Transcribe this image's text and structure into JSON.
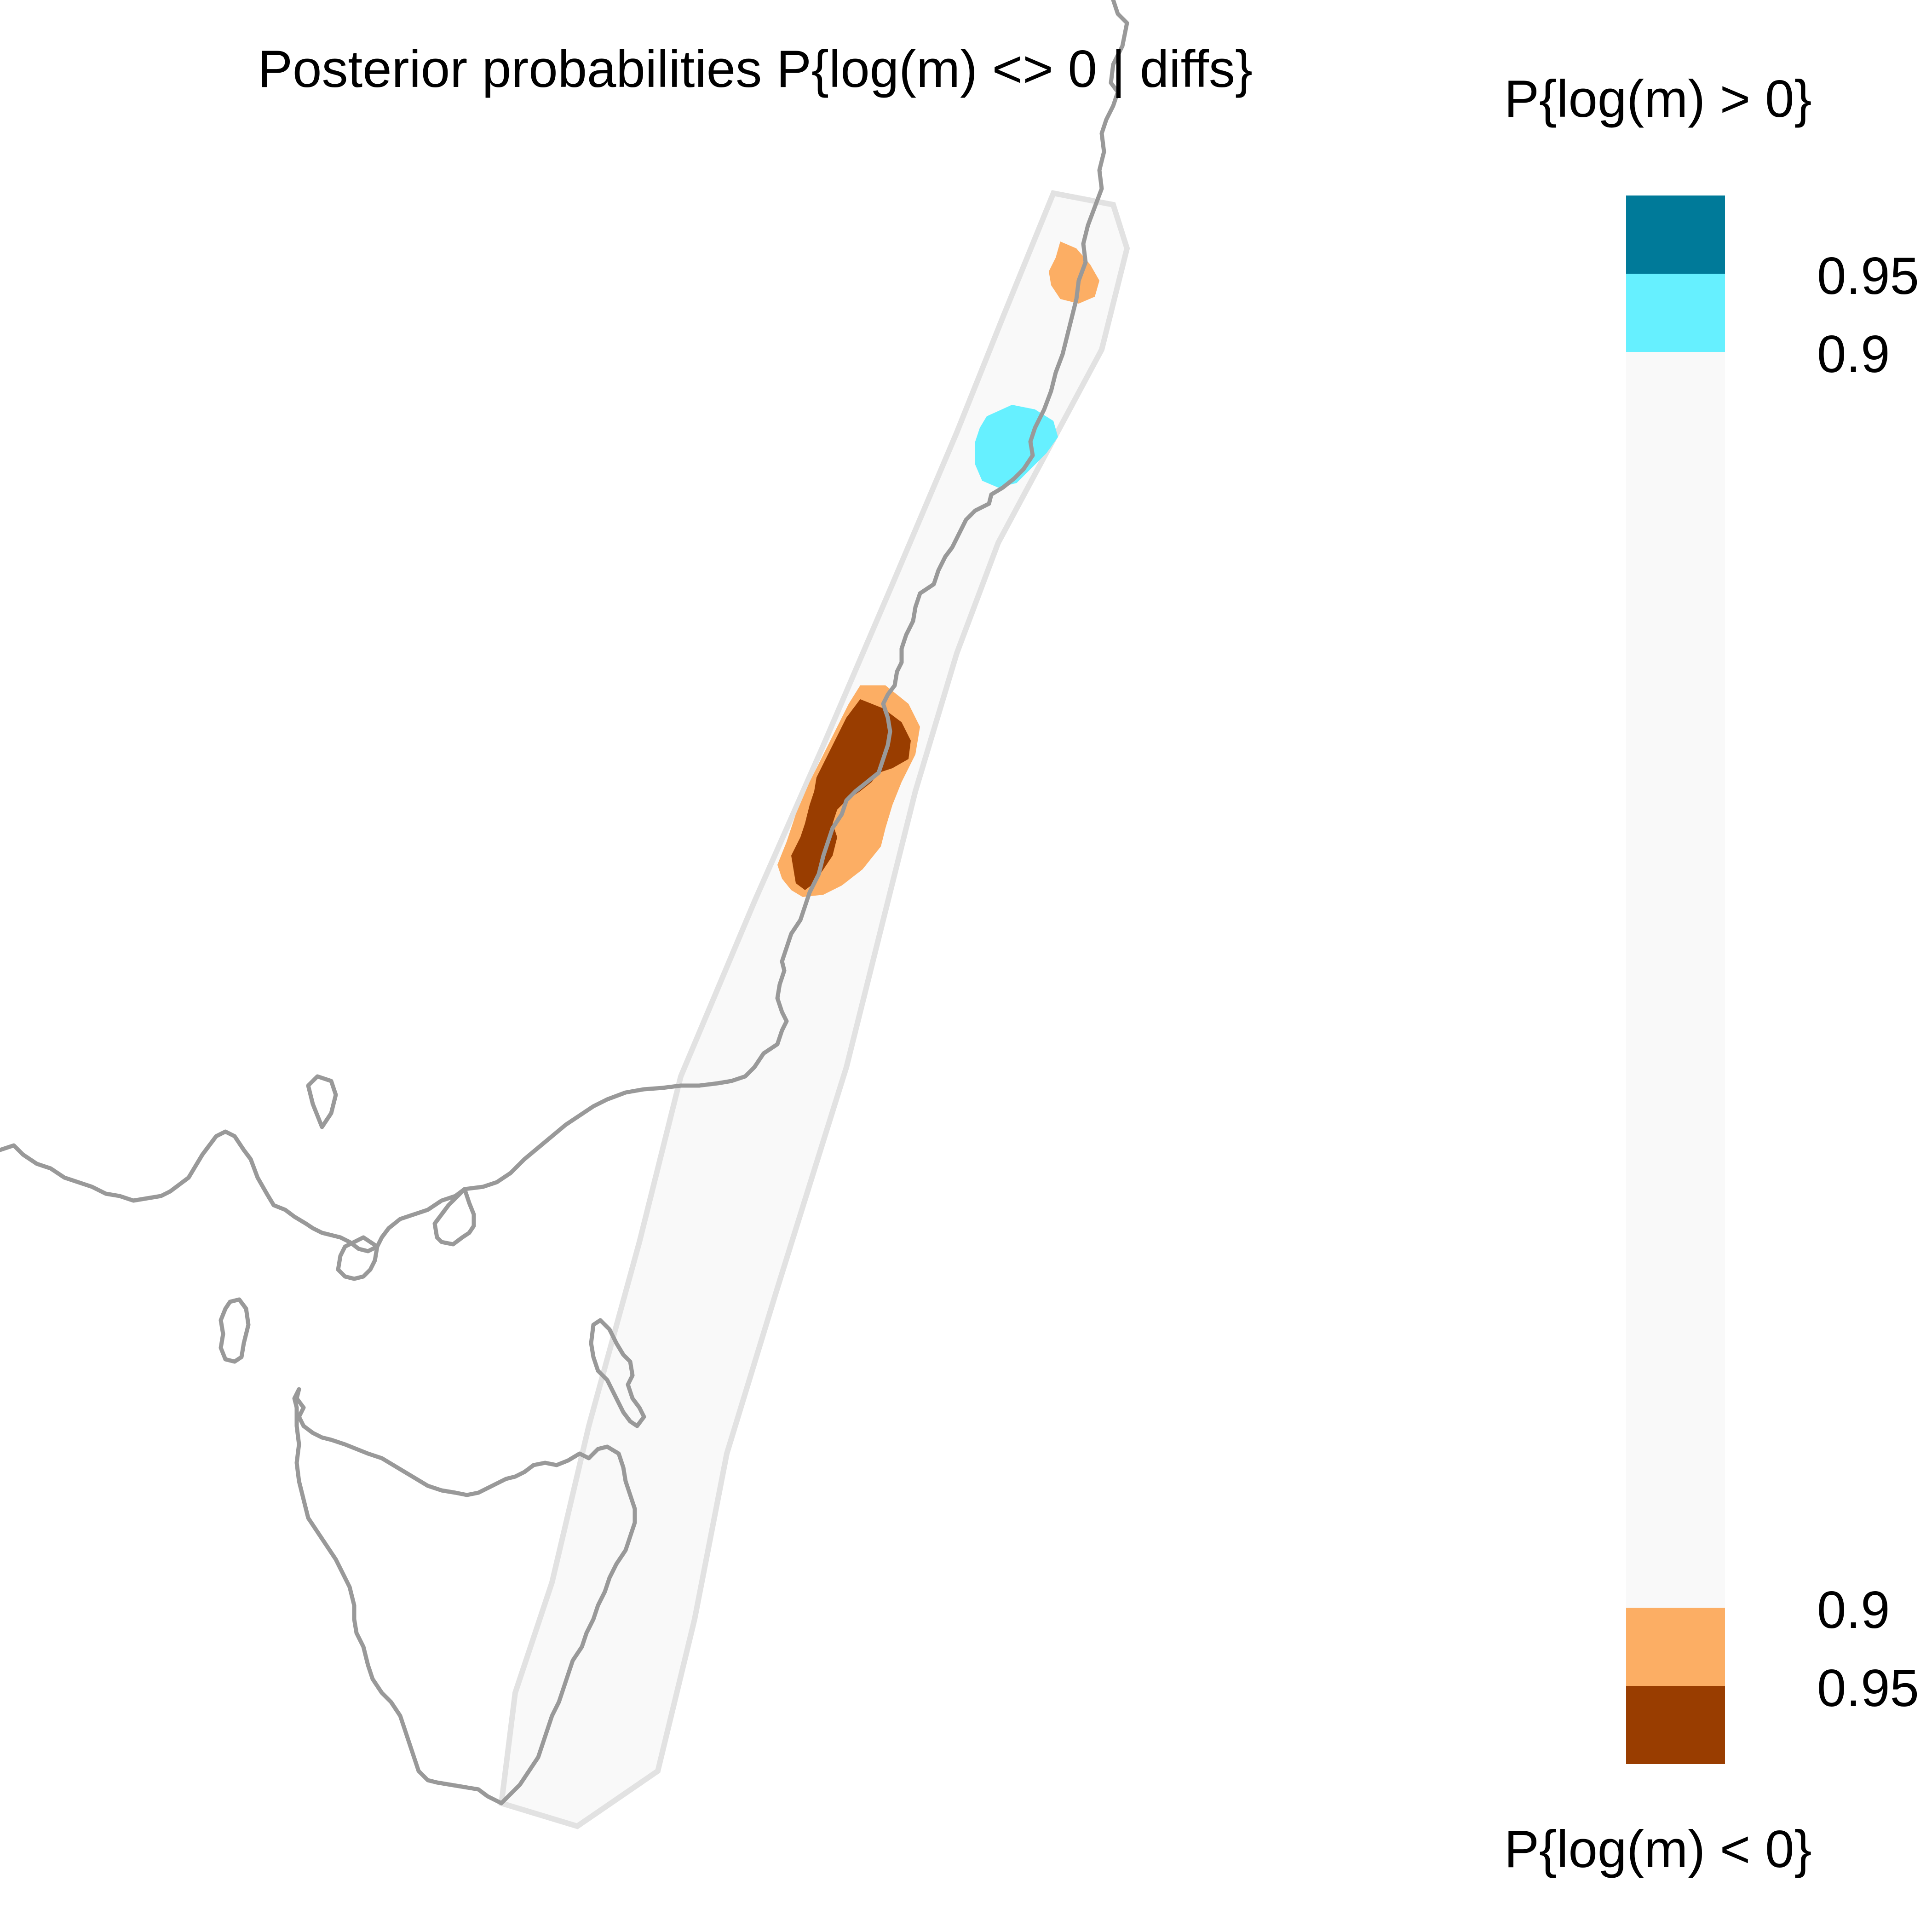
{
  "title": "Posterior probabilities P{log(m) <> 0 | diffs}",
  "legend": {
    "upper_title": "P{log(m) > 0}",
    "lower_title": "P{log(m) < 0}",
    "upper_ticks": [
      "0.95",
      "0.9"
    ],
    "lower_ticks": [
      "0.9",
      "0.95"
    ],
    "colors": {
      "pos_095": "#007a99",
      "pos_09": "#66f0ff",
      "neutral": "#f9f9f9",
      "neg_09": "#fcae64",
      "neg_095": "#993d00"
    }
  },
  "map": {
    "region_fill": "#f9f9f9",
    "region_outline": "#e2e2e2",
    "coastline": "#999999",
    "features": [
      "coastline-mainland",
      "tasmania",
      "flinders-island",
      "king-island",
      "study-region"
    ],
    "patches": [
      {
        "name": "northern-patch",
        "class": "P{log(m) < 0} > 0.9"
      },
      {
        "name": "blue-patch",
        "class": "P{log(m) > 0} > 0.9"
      },
      {
        "name": "central-patch",
        "class": "P{log(m) < 0} > 0.95"
      }
    ]
  }
}
